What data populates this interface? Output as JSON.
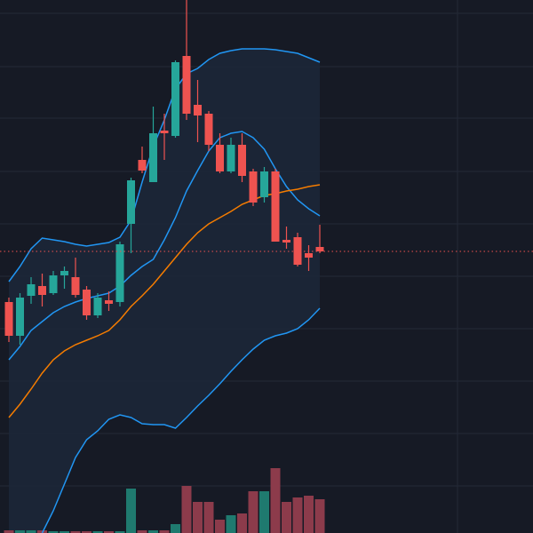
{
  "chart_data": {
    "type": "candlestick",
    "categories": [
      null,
      null,
      null,
      null,
      null,
      null,
      null,
      null,
      null,
      null,
      null,
      null,
      null,
      null,
      null,
      null,
      null,
      null,
      null,
      null,
      null,
      null,
      null,
      null,
      null,
      null,
      null,
      null,
      null
    ],
    "open": [
      260,
      222,
      267,
      278,
      270,
      290,
      288,
      274,
      245,
      262,
      260,
      348,
      420,
      395,
      453,
      447,
      537,
      482,
      472,
      437,
      407,
      437,
      407,
      378,
      407,
      330,
      333,
      315,
      322
    ],
    "high": [
      265,
      270,
      288,
      292,
      295,
      300,
      310,
      278,
      270,
      272,
      328,
      400,
      435,
      480,
      472,
      532,
      600,
      510,
      475,
      450,
      445,
      450,
      410,
      412,
      410,
      345,
      338,
      324,
      347
    ],
    "low": [
      215,
      212,
      258,
      255,
      268,
      275,
      265,
      240,
      242,
      250,
      255,
      315,
      405,
      395,
      420,
      445,
      465,
      440,
      430,
      405,
      405,
      395,
      368,
      372,
      328,
      320,
      300,
      295,
      315
    ],
    "close": [
      222,
      265,
      280,
      268,
      290,
      295,
      268,
      245,
      265,
      258,
      325,
      397,
      408,
      450,
      450,
      530,
      472,
      470,
      437,
      407,
      437,
      402,
      372,
      407,
      328,
      327,
      302,
      310,
      317
    ],
    "volume": [
      3,
      3,
      3,
      3,
      2,
      2,
      2,
      2,
      2,
      2,
      2,
      50,
      3,
      3,
      3,
      10,
      53,
      35,
      35,
      15,
      20,
      22,
      47,
      47,
      73,
      35,
      40,
      42,
      38
    ],
    "up_color": "#26a69a",
    "down_color": "#ef5350",
    "volume_up_color": "#1f7a6f",
    "volume_down_color": "#8c3b4b",
    "series": [
      {
        "color": "#2196f3",
        "values": [
          283,
          300,
          320,
          332,
          330,
          328,
          325,
          323,
          325,
          327,
          333,
          352,
          395,
          435,
          465,
          500,
          517,
          523,
          533,
          540,
          543,
          545,
          545,
          545,
          544,
          542,
          540,
          535,
          530
        ]
      },
      {
        "color": "#2196f3",
        "values": [
          195,
          210,
          228,
          238,
          248,
          255,
          260,
          264,
          267,
          270,
          278,
          290,
          300,
          308,
          330,
          355,
          385,
          408,
          430,
          445,
          450,
          452,
          445,
          432,
          410,
          390,
          375,
          365,
          357
        ]
      },
      {
        "color": "#f57c00",
        "values": [
          130,
          145,
          162,
          180,
          195,
          205,
          212,
          217,
          222,
          228,
          240,
          255,
          267,
          280,
          295,
          310,
          325,
          338,
          348,
          355,
          362,
          370,
          375,
          380,
          382,
          385,
          387,
          390,
          392
        ]
      },
      {
        "color": "#2196f3",
        "values": [
          null,
          null,
          null,
          0,
          25,
          55,
          85,
          105,
          115,
          128,
          133,
          130,
          123,
          122,
          122,
          118,
          130,
          143,
          155,
          168,
          182,
          195,
          207,
          217,
          222,
          225,
          230,
          240,
          253
        ]
      }
    ],
    "band_fill": "#1c2738",
    "ylim": [
      0,
      600
    ],
    "vlim": [
      0,
      100
    ],
    "yticks": [
      53,
      112,
      171,
      230,
      289,
      348,
      407,
      467,
      525,
      585
    ],
    "grid": true,
    "price_line_color": "#ef5350"
  }
}
